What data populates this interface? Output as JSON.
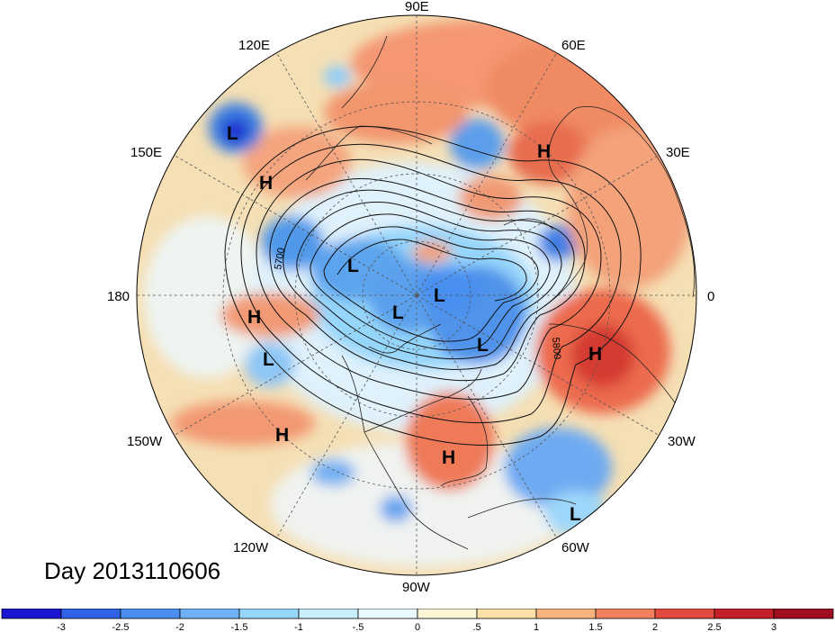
{
  "title": "Day 2013110606",
  "longitude_labels": {
    "lat_90e": "90E",
    "lat_60e": "60E",
    "lat_30e": "30E",
    "lat_0": "0",
    "lat_30w": "30W",
    "lat_60w": "60W",
    "lat_90w": "90W",
    "lat_120w": "120W",
    "lat_150w": "150W",
    "lat_180": "180",
    "lat_150e": "150E",
    "lat_120e": "120E"
  },
  "contour_labels": [
    "5700",
    "5800"
  ],
  "pressure_centers": [
    {
      "symbol": "L",
      "region": "north-pacific-west"
    },
    {
      "symbol": "H",
      "region": "north-pacific"
    },
    {
      "symbol": "H",
      "region": "central-pacific"
    },
    {
      "symbol": "L",
      "region": "subtropical-pacific"
    },
    {
      "symbol": "H",
      "region": "east-pacific"
    },
    {
      "symbol": "L",
      "region": "arctic-siberia"
    },
    {
      "symbol": "L",
      "region": "arctic-center"
    },
    {
      "symbol": "L",
      "region": "arctic-east"
    },
    {
      "symbol": "L",
      "region": "greenland"
    },
    {
      "symbol": "H",
      "region": "western-russia"
    },
    {
      "symbol": "H",
      "region": "north-atlantic"
    },
    {
      "symbol": "H",
      "region": "southeast-us"
    },
    {
      "symbol": "L",
      "region": "tropical-atlantic"
    }
  ],
  "colorbar": {
    "ticks": [
      "-3",
      "-2.5",
      "-2",
      "-1.5",
      "-1",
      "-.5",
      "0",
      ".5",
      "1",
      "1.5",
      "2",
      "2.5",
      "3"
    ],
    "colors": [
      "#1a16cf",
      "#2f62e4",
      "#4a8ff0",
      "#6fb2f7",
      "#96d6fb",
      "#c8eefd",
      "#e9f9fe",
      "#fdf6d6",
      "#fbe0a8",
      "#f8b47e",
      "#f1805d",
      "#e24a3e",
      "#c51f2a",
      "#a00f20"
    ]
  },
  "colors": {
    "ocean_neutral": "#f6e7c4",
    "warm": "#ef8a62",
    "cold": "#67a9e8"
  }
}
